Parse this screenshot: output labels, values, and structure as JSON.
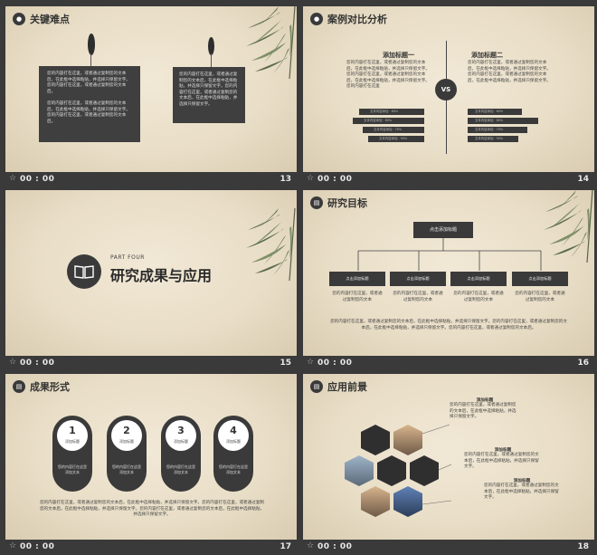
{
  "footer": {
    "time": "00 : 00",
    "star": "☆"
  },
  "s13": {
    "title": "关键难点",
    "icon": "person-icon",
    "box1": "您的内容打在这里，或者通过复制您的文本后，在此框中选择粘贴，并选择只保留文字。您的内容打在这里，或者通过复制您的文本后。\n\n您的内容打在这里，或者通过复制您的文本后，在此框中选择粘贴，并选择只保留文字。您的内容打在这里，或者通过复制您的文本后。",
    "box2": "您的内容打在这里，或者通过复制您的文本后，在此框中选择粘贴，并选择只保留文字。您的内容打在这里，或者通过复制您的文本后，在此框中选择粘贴，并选择只保留文字。",
    "num": "13"
  },
  "s14": {
    "title": "案例对比分析",
    "icon": "person-icon",
    "vs": "VS",
    "left_heading": "添加标题一",
    "right_heading": "添加标题二",
    "left_text": "您的内容打在这里，或者通过复制您的文本后，在此框中选择粘贴，并选择只保留文字。您的内容打在这里，或者通过复制您的文本后，在此框中选择粘贴，并选择只保留文字。您的内容打在这里",
    "right_text": "您的内容打在这里，或者通过复制您的文本后，在此框中选择粘贴，并选择只保留文字。您的内容打在这里，或者通过复制您的文本后，在此框中选择粘贴，并选择只保留文字。",
    "left_bars": [
      "文本内容添加 · 60%",
      "文本内容添加 · 80%",
      "文本内容添加 · 70%",
      "文本内容添加 · 90%"
    ],
    "right_bars": [
      "文本内容添加 · 60%",
      "文本内容添加 · 80%",
      "文本内容添加 · 70%",
      "文本内容添加 · 90%"
    ],
    "num": "14"
  },
  "s15": {
    "part": "PART FOUR",
    "title": "研究成果与应用",
    "icon": "book-icon",
    "num": "15"
  },
  "s16": {
    "title": "研究目标",
    "icon": "book-icon",
    "top": "点击添加标题",
    "boxes": [
      "点击添加标题",
      "点击添加标题",
      "点击添加标题",
      "点击添加标题"
    ],
    "subs": [
      "您的内容打在这里，或者通过复制您的文本",
      "您的内容打在这里，或者通过复制您的文本",
      "您的内容打在这里，或者通过复制您的文本",
      "您的内容打在这里，或者通过复制您的文本"
    ],
    "para": "您的内容打在这里，或者通过复制您的文本后，在此框中选择粘贴，并选择只保留文字。您的内容打在这里，或者通过复制您的文本后，在此框中选择粘贴，并选择只保留文字。您的内容打在这里，或者通过复制您的文本后。",
    "num": "16"
  },
  "s17": {
    "title": "成果形式",
    "icon": "book-icon",
    "items": [
      {
        "n": "1",
        "label": "添加标题",
        "text": "您的内容打在这里添加文本"
      },
      {
        "n": "2",
        "label": "添加标题",
        "text": "您的内容打在这里添加文本"
      },
      {
        "n": "3",
        "label": "添加标题",
        "text": "您的内容打在这里添加文本"
      },
      {
        "n": "4",
        "label": "添加标题",
        "text": "您的内容打在这里添加文本"
      }
    ],
    "para": "您的内容打在这里，或者通过复制您的文本后，在此框中选择粘贴，并选择只保留文字。您的内容打在这里，或者通过复制您的文本后，在此框中选择粘贴，并选择只保留文字。您的内容打在这里，或者通过复制您的文本后，在此框中选择粘贴，并选择只保留文字。",
    "num": "17"
  },
  "s18": {
    "title": "应用前景",
    "icon": "book-icon",
    "notes": [
      {
        "h": "添加标题",
        "t": "您的内容打在这里，或者通过复制您的文本后，在此框中选择粘贴，并选择只保留文字。"
      },
      {
        "h": "添加标题",
        "t": "您的内容打在这里，或者通过复制您的文本后，在此框中选择粘贴，并选择只保留文字。"
      },
      {
        "h": "添加标题",
        "t": "您的内容打在这里，或者通过复制您的文本后，在此框中选择粘贴，并选择只保留文字。"
      }
    ],
    "num": "18"
  }
}
